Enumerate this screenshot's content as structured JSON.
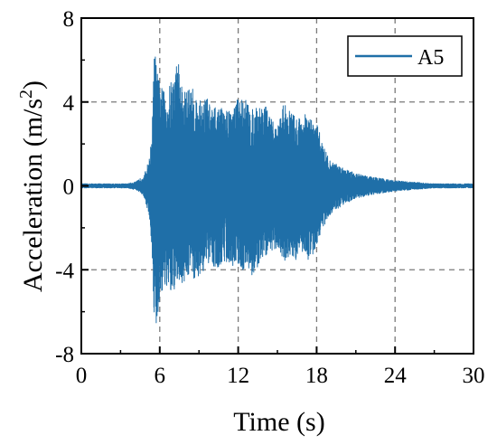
{
  "chart_data": {
    "type": "line",
    "title": "",
    "xlabel": "Time (s)",
    "ylabel_main": "Acceleration (m/s",
    "ylabel_sup": "2",
    "ylabel_close": ")",
    "xlim": [
      0,
      30
    ],
    "ylim": [
      -8,
      8
    ],
    "x_ticks": [
      0,
      6,
      12,
      18,
      24,
      30
    ],
    "y_ticks": [
      -8,
      -4,
      0,
      4,
      8
    ],
    "x_tick_labels": [
      "0",
      "6",
      "12",
      "18",
      "24",
      "30"
    ],
    "y_tick_labels": [
      "-8",
      "-4",
      "0",
      "4",
      "8"
    ],
    "grid": true,
    "grid_style": "dashed",
    "legend_position": "top-right",
    "color": "#1f6fa8",
    "series": [
      {
        "name": "A5",
        "envelope_x": [
          0,
          3.5,
          4.2,
          4.8,
          5.2,
          5.4,
          5.6,
          5.8,
          6.0,
          6.3,
          6.6,
          7.0,
          7.4,
          7.8,
          8.2,
          8.6,
          9.0,
          9.5,
          10.0,
          10.5,
          11.0,
          11.5,
          12.0,
          12.5,
          13.0,
          13.5,
          14.0,
          14.5,
          15.0,
          15.5,
          16.0,
          16.5,
          17.0,
          17.5,
          18.0,
          18.5,
          19.0,
          20.0,
          21.0,
          22.0,
          23.0,
          24.0,
          25.0,
          26.0,
          27.0,
          28.0,
          30.0
        ],
        "envelope_upper": [
          0.1,
          0.1,
          0.2,
          0.5,
          1.3,
          2.5,
          6.8,
          5.4,
          5.0,
          4.5,
          4.6,
          5.2,
          6.2,
          4.4,
          4.8,
          4.6,
          4.0,
          4.4,
          3.7,
          3.8,
          3.6,
          3.8,
          4.2,
          4.3,
          3.6,
          3.8,
          4.0,
          3.2,
          2.8,
          4.0,
          3.6,
          3.2,
          3.5,
          3.2,
          3.0,
          2.0,
          1.2,
          0.9,
          0.6,
          0.45,
          0.35,
          0.25,
          0.2,
          0.15,
          0.1,
          0.1,
          0.1
        ],
        "envelope_lower": [
          -0.1,
          -0.1,
          -0.2,
          -0.5,
          -1.5,
          -3.0,
          -7.0,
          -6.6,
          -5.5,
          -4.8,
          -5.0,
          -5.5,
          -4.5,
          -4.8,
          -4.2,
          -4.5,
          -4.3,
          -4.0,
          -3.8,
          -3.9,
          -3.6,
          -3.8,
          -3.8,
          -4.1,
          -4.3,
          -4.0,
          -3.4,
          -3.2,
          -2.9,
          -3.6,
          -3.6,
          -3.5,
          -3.3,
          -3.6,
          -2.8,
          -2.0,
          -1.4,
          -0.9,
          -0.6,
          -0.45,
          -0.35,
          -0.25,
          -0.2,
          -0.15,
          -0.1,
          -0.1,
          -0.1
        ]
      }
    ]
  }
}
